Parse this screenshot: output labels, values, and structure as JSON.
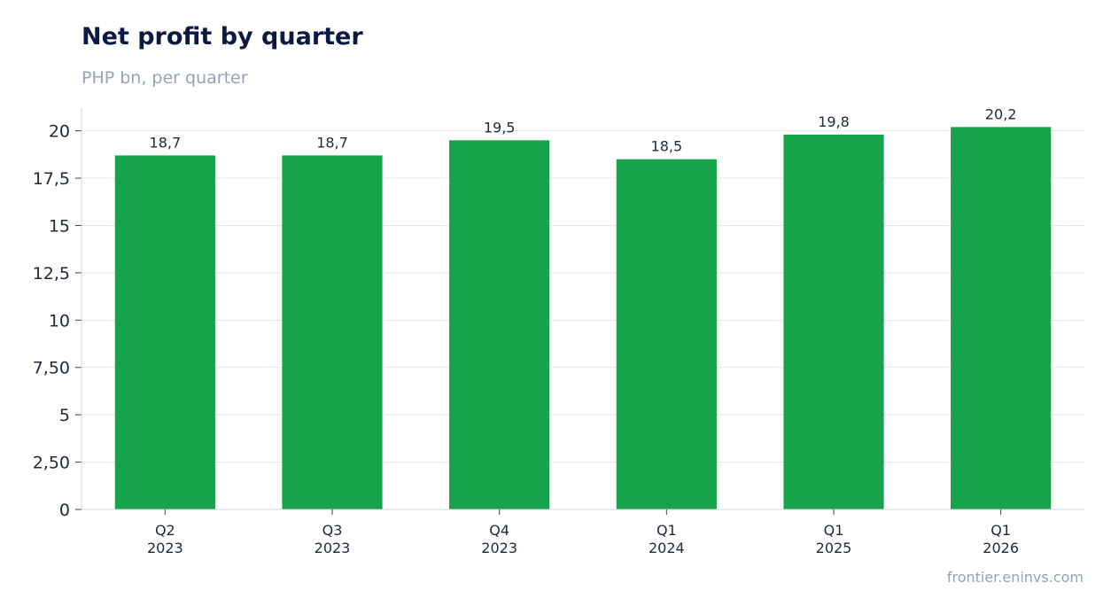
{
  "header": {
    "title": "Net profit by quarter",
    "subtitle": "PHP bn, per quarter"
  },
  "footer": {
    "source": "frontier.eninvs.com"
  },
  "chart_data": {
    "type": "bar",
    "title": "Net profit by quarter",
    "subtitle": "PHP bn, per quarter",
    "xlabel": "",
    "ylabel": "",
    "categories": [
      [
        "Q2",
        "2023"
      ],
      [
        "Q3",
        "2023"
      ],
      [
        "Q4",
        "2023"
      ],
      [
        "Q1",
        "2024"
      ],
      [
        "Q1",
        "2025"
      ],
      [
        "Q1",
        "2026"
      ]
    ],
    "values": [
      18.7,
      18.7,
      19.5,
      18.5,
      19.8,
      20.2
    ],
    "value_labels": [
      "18,7",
      "18,7",
      "19,5",
      "18,5",
      "19,8",
      "20,2"
    ],
    "yticks": [
      0,
      2.5,
      5,
      7.5,
      10,
      12.5,
      15,
      17.5,
      20
    ],
    "ytick_labels": [
      "0",
      "2,50",
      "5",
      "7,50",
      "10",
      "12,5",
      "15",
      "17,5",
      "20"
    ],
    "ylim": [
      0,
      21.2
    ],
    "grid": true,
    "legend": "none",
    "colors": {
      "bar": "#18a34a",
      "grid": "#e5e7eb",
      "axis": "#d1d5db"
    }
  }
}
